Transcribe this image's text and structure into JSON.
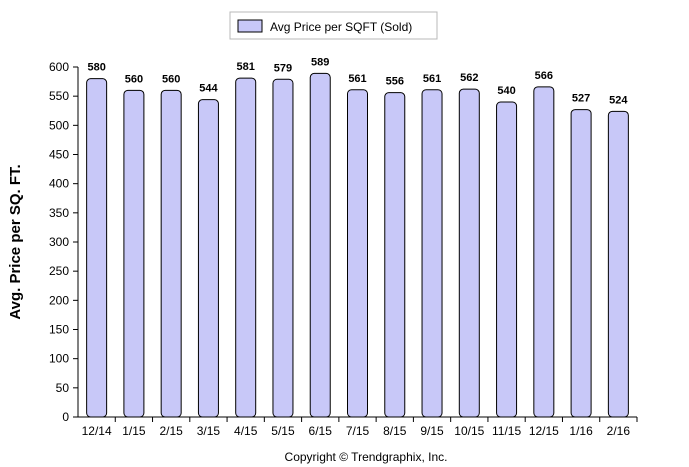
{
  "chart_data": {
    "type": "bar",
    "categories": [
      "12/14",
      "1/15",
      "2/15",
      "3/15",
      "4/15",
      "5/15",
      "6/15",
      "7/15",
      "8/15",
      "9/15",
      "10/15",
      "11/15",
      "12/15",
      "1/16",
      "2/16"
    ],
    "series": [
      {
        "name": "Avg Price per SQFT (Sold)",
        "values": [
          580,
          560,
          560,
          544,
          581,
          579,
          589,
          561,
          556,
          561,
          562,
          540,
          566,
          527,
          524
        ]
      }
    ],
    "data_labels": [
      "580",
      "560",
      "560",
      "544",
      "581",
      "579",
      "589",
      "561",
      "556",
      "561",
      "562",
      "540",
      "566",
      "527",
      "524"
    ],
    "ylabel": "Avg. Price per SQ. FT.",
    "xlabel": "",
    "ylim": [
      0,
      600
    ],
    "yticks": [
      "0",
      "50",
      "100",
      "150",
      "200",
      "250",
      "300",
      "350",
      "400",
      "450",
      "500",
      "550",
      "600"
    ],
    "legend": {
      "label": "Avg Price per SQFT (Sold)",
      "position": "top-center"
    },
    "grid": false,
    "bar_fill": "#c8c8f8",
    "bar_stroke": "#000000"
  },
  "footer": {
    "copyright": "Copyright © Trendgraphix, Inc."
  }
}
